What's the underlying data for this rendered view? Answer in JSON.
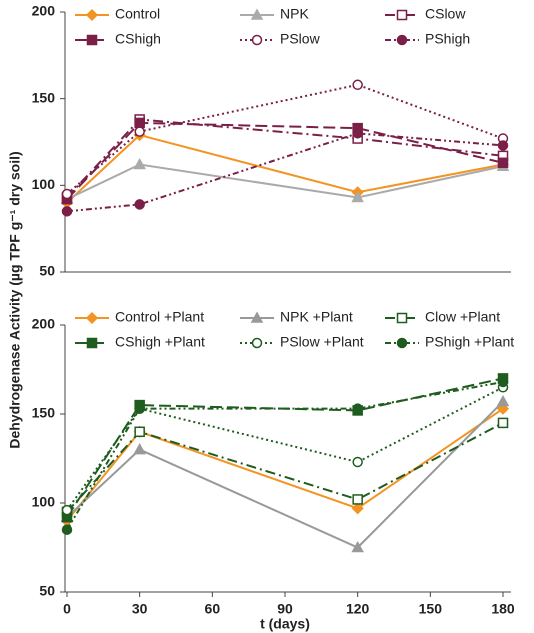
{
  "chart_data": [
    {
      "type": "line",
      "ylabel": "Dehydrogenase Activity (µg TPF g⁻¹ dry soil)",
      "x": [
        0,
        30,
        120,
        180
      ],
      "xlim": [
        0,
        180
      ],
      "ylim": [
        50,
        200
      ],
      "yticks": [
        50,
        100,
        150,
        200
      ],
      "series": [
        {
          "name": "Control",
          "color": "#f39322",
          "marker": "diamond",
          "filled": true,
          "dash": "solid",
          "values": [
            90,
            129,
            96,
            112
          ]
        },
        {
          "name": "NPK",
          "color": "#aaaaaa",
          "marker": "triangle",
          "filled": true,
          "dash": "solid",
          "values": [
            92,
            112,
            93,
            111
          ]
        },
        {
          "name": "CSlow",
          "color": "#7a1f47",
          "marker": "square",
          "filled": false,
          "dash": "dashdot",
          "values": [
            93,
            138,
            127,
            117
          ]
        },
        {
          "name": "CShigh",
          "color": "#7a1f47",
          "marker": "square",
          "filled": true,
          "dash": "dash",
          "values": [
            92,
            136,
            133,
            113
          ]
        },
        {
          "name": "PSlow",
          "color": "#7a1f47",
          "marker": "circle",
          "filled": false,
          "dash": "dot",
          "values": [
            95,
            131,
            158,
            127
          ]
        },
        {
          "name": "PShigh",
          "color": "#7a1f47",
          "marker": "circle",
          "filled": true,
          "dash": "dashdotdot",
          "values": [
            85,
            89,
            130,
            123
          ]
        }
      ]
    },
    {
      "type": "line",
      "xlabel": "t (days)",
      "x": [
        0,
        30,
        120,
        180
      ],
      "xlim": [
        0,
        180
      ],
      "xticks": [
        0,
        30,
        60,
        90,
        120,
        150,
        180
      ],
      "ylim": [
        50,
        200
      ],
      "yticks": [
        50,
        100,
        150,
        200
      ],
      "series": [
        {
          "name": "Control +Plant",
          "color": "#f39322",
          "marker": "diamond",
          "filled": true,
          "dash": "solid",
          "values": [
            90,
            140,
            97,
            153
          ]
        },
        {
          "name": "NPK +Plant",
          "color": "#999999",
          "marker": "triangle",
          "filled": true,
          "dash": "solid",
          "values": [
            92,
            130,
            75,
            157
          ]
        },
        {
          "name": "Clow +Plant",
          "color": "#1f5c1f",
          "marker": "square",
          "filled": false,
          "dash": "dashdot",
          "values": [
            95,
            140,
            102,
            145
          ]
        },
        {
          "name": "CShigh +Plant",
          "color": "#1f5c1f",
          "marker": "square",
          "filled": true,
          "dash": "dash",
          "values": [
            92,
            155,
            152,
            170
          ]
        },
        {
          "name": "PSlow +Plant",
          "color": "#1f5c1f",
          "marker": "circle",
          "filled": false,
          "dash": "dot",
          "values": [
            96,
            153,
            123,
            165
          ]
        },
        {
          "name": "PShigh +Plant",
          "color": "#1f5c1f",
          "marker": "circle",
          "filled": true,
          "dash": "dashdotdot",
          "values": [
            85,
            153,
            153,
            168
          ]
        }
      ]
    }
  ]
}
